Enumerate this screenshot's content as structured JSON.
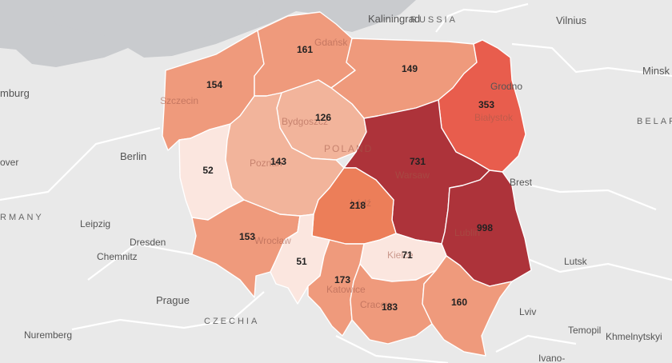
{
  "colors": {
    "land": "#e9e9e9",
    "sea": "#c9cbce",
    "scale": [
      "#fbe6df",
      "#f2b49b",
      "#ef9a7c",
      "#e85d4d",
      "#ad333a"
    ]
  },
  "place_labels": {
    "kaliningrad": "Kaliningrad",
    "russia": "RUSSIA",
    "vilnius": "Vilnius",
    "minsk": "Minsk",
    "belarus": "BELAR",
    "hamburg": "mburg",
    "berlin": "Berlin",
    "hanover": "over",
    "germany": "RMANY",
    "leipzig": "Leipzig",
    "dresden": "Dresden",
    "chemnitz": "Chemnitz",
    "prague": "Prague",
    "czechia": "CZECHIA",
    "nuremberg": "Nuremberg",
    "grodno": "Grodno",
    "brest": "Brest",
    "lutsk": "Lutsk",
    "lviv": "Lviv",
    "ternopil": "Temopil",
    "khmelnytskyi": "Khmelnytskyi",
    "ivano": "Ivano-",
    "poland": "POLAND",
    "gdansk": "Gdańsk",
    "szczecin": "Szczecin",
    "bydgoszcz": "Bydgoszcz",
    "poznan": "Poznań",
    "warsaw": "Warsaw",
    "bialystok": "Białystok",
    "lublin": "Lublin",
    "wroclaw": "Wrocław",
    "katowice": "Katowice",
    "krakow": "Cracow",
    "kielce": "Kielce",
    "lodz": "Łódź"
  },
  "regions": [
    {
      "id": "zachodniopomorskie",
      "value": "154",
      "color": "#ef9a7c"
    },
    {
      "id": "pomorskie",
      "value": "161",
      "color": "#ef9a7c"
    },
    {
      "id": "warminsko-mazurskie",
      "value": "149",
      "color": "#ef9a7c"
    },
    {
      "id": "podlaskie",
      "value": "353",
      "color": "#e85d4d"
    },
    {
      "id": "kujawsko-pomorskie",
      "value": "126",
      "color": "#f2b49b"
    },
    {
      "id": "lubuskie",
      "value": "52",
      "color": "#fbe6df"
    },
    {
      "id": "wielkopolskie",
      "value": "143",
      "color": "#f2b49b"
    },
    {
      "id": "mazowieckie",
      "value": "731",
      "color": "#ad333a"
    },
    {
      "id": "lodzkie",
      "value": "218",
      "color": "#ec7e59"
    },
    {
      "id": "lubelskie",
      "value": "998",
      "color": "#ad333a"
    },
    {
      "id": "dolnoslaskie",
      "value": "153",
      "color": "#ef9a7c"
    },
    {
      "id": "opolskie",
      "value": "51",
      "color": "#fbe6df"
    },
    {
      "id": "slaskie",
      "value": "173",
      "color": "#ef9a7c"
    },
    {
      "id": "swietokrzyskie",
      "value": "71",
      "color": "#fbe6df"
    },
    {
      "id": "malopolskie",
      "value": "183",
      "color": "#ef9a7c"
    },
    {
      "id": "podkarpackie",
      "value": "160",
      "color": "#ef9a7c"
    }
  ]
}
